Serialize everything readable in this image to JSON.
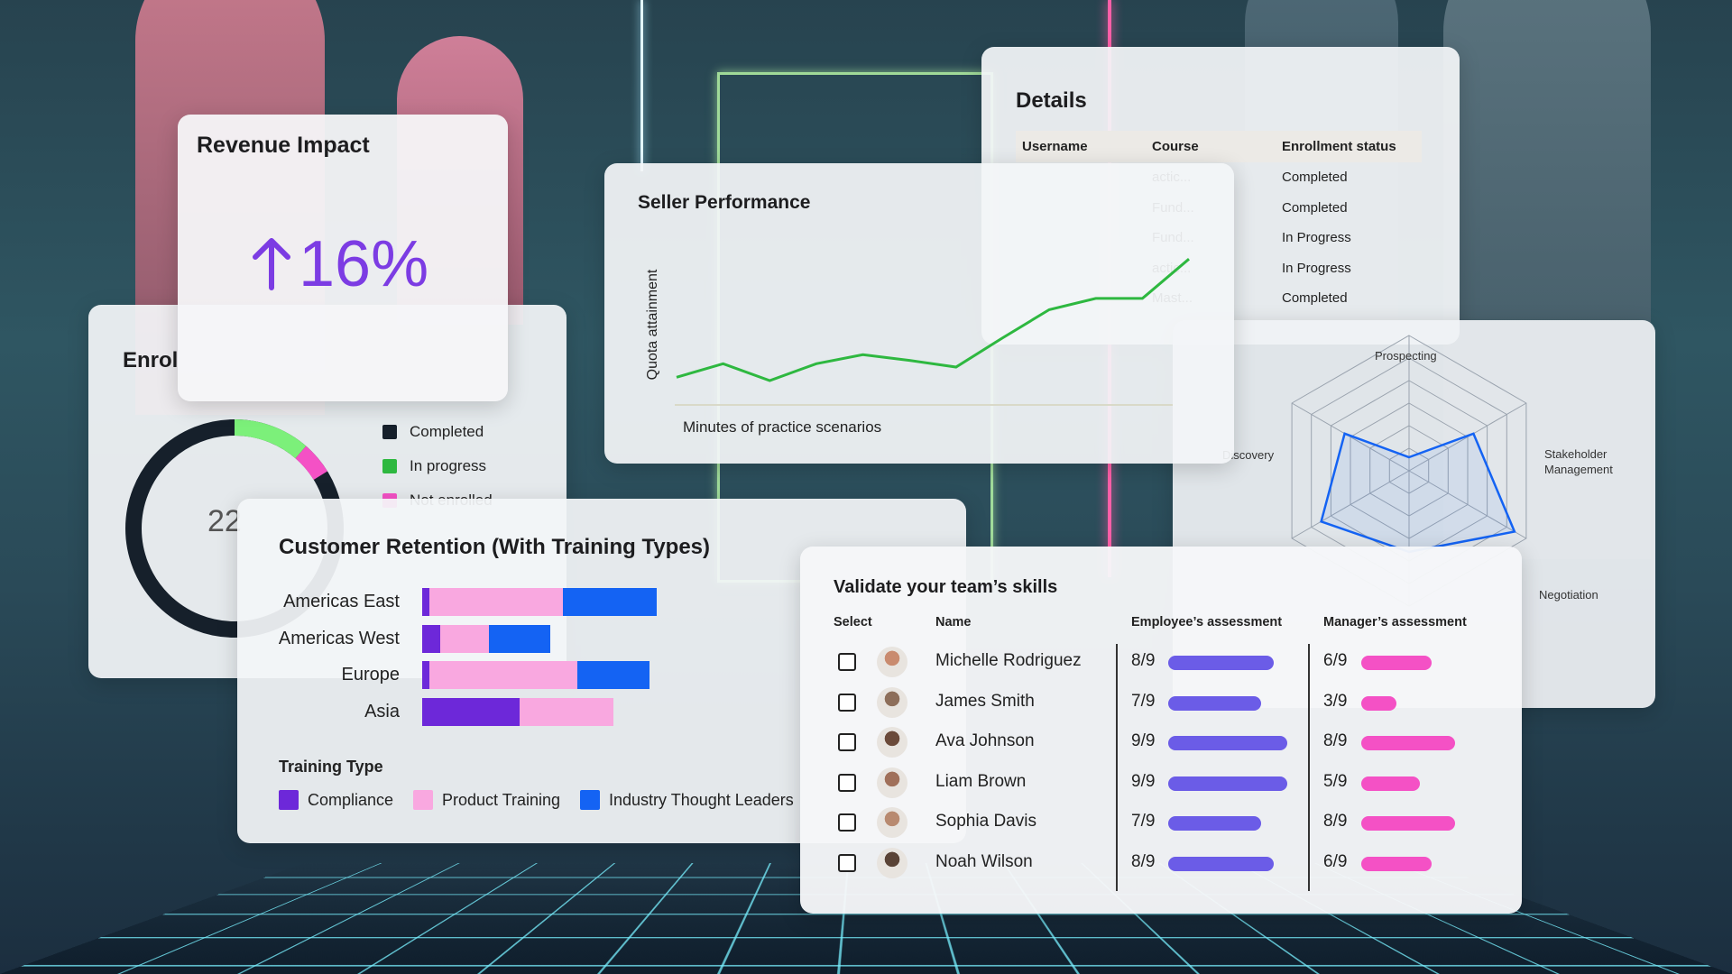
{
  "colors": {
    "purple": "#6d28d9",
    "pink": "#f9a8e0",
    "blue": "#1463f3",
    "green": "#2eb840",
    "dark": "#16202b",
    "employee_bar": "#6b5ce7",
    "manager_bar": "#f451c5",
    "revenue": "#7c3ce3"
  },
  "revenue": {
    "title": "Revenue Impact",
    "value": "16%",
    "icon": "arrow-up-icon"
  },
  "details": {
    "title": "Details",
    "headers": [
      "Username",
      "Course",
      "Enrollment status"
    ],
    "rows": [
      {
        "course": "actic...",
        "status": "Completed"
      },
      {
        "course": "Fund...",
        "status": "Completed"
      },
      {
        "course": "Fund...",
        "status": "In Progress"
      },
      {
        "course": "actic...",
        "status": "In Progress"
      },
      {
        "course": "Mast...",
        "status": "Completed"
      }
    ]
  },
  "enrollment": {
    "title": "Enrol",
    "center_value": "22",
    "legend": [
      {
        "label": "Completed",
        "color": "#16202b"
      },
      {
        "label": "In progress",
        "color": "#2eb840"
      },
      {
        "label": "Not enrolled",
        "color": "#f451c5"
      }
    ]
  },
  "seller": {
    "title": "Seller Performance",
    "xlabel": "Minutes of practice scenarios",
    "ylabel": "Quota attainment"
  },
  "radar": {
    "axes": [
      "Prospecting",
      "Stakeholder Management",
      "Negotiation",
      "Discovery"
    ]
  },
  "retention": {
    "title": "Customer Retention (With Training Types)",
    "legend_title": "Training Type",
    "legend": [
      {
        "label": "Compliance",
        "color": "#6d28d9"
      },
      {
        "label": "Product Training",
        "color": "#f9a8e0"
      },
      {
        "label": "Industry Thought Leaders",
        "color": "#1463f3"
      }
    ]
  },
  "chart_data": [
    {
      "type": "line",
      "title": "Seller Performance",
      "xlabel": "Minutes of practice scenarios",
      "ylabel": "Quota attainment",
      "series": [
        {
          "values": [
            0.15,
            0.27,
            0.12,
            0.27,
            0.35,
            0.3,
            0.24,
            0.5,
            0.75,
            0.85,
            0.85,
            1.2
          ]
        }
      ]
    },
    {
      "type": "bar",
      "orientation": "horizontal",
      "stacked": true,
      "title": "Customer Retention (With Training Types)",
      "categories": [
        "Americas East",
        "Americas West",
        "Europe",
        "Asia"
      ],
      "series": [
        {
          "name": "Compliance",
          "values": [
            4,
            10,
            4,
            54
          ]
        },
        {
          "name": "Product Training",
          "values": [
            74,
            27,
            82,
            52
          ]
        },
        {
          "name": "Industry Thought Leaders",
          "values": [
            52,
            34,
            40,
            0
          ]
        }
      ]
    }
  ],
  "skills": {
    "title": "Validate your team’s skills",
    "headers": {
      "select": "Select",
      "name": "Name",
      "employee": "Employee’s assessment",
      "manager": "Manager’s assessment"
    },
    "rows": [
      {
        "name": "Michelle Rodriguez",
        "employee": "8/9",
        "manager": "6/9",
        "e": 8,
        "m": 6,
        "avatar": "#c98b6f"
      },
      {
        "name": "James Smith",
        "employee": "7/9",
        "manager": "3/9",
        "e": 7,
        "m": 3,
        "avatar": "#8d6e5a"
      },
      {
        "name": "Ava Johnson",
        "employee": "9/9",
        "manager": "8/9",
        "e": 9,
        "m": 8,
        "avatar": "#6b4a3a"
      },
      {
        "name": "Liam Brown",
        "employee": "9/9",
        "manager": "5/9",
        "e": 9,
        "m": 5,
        "avatar": "#a0705a"
      },
      {
        "name": "Sophia Davis",
        "employee": "7/9",
        "manager": "8/9",
        "e": 7,
        "m": 8,
        "avatar": "#b88a70"
      },
      {
        "name": "Noah Wilson",
        "employee": "8/9",
        "manager": "6/9",
        "e": 8,
        "m": 6,
        "avatar": "#5a4336"
      }
    ]
  }
}
